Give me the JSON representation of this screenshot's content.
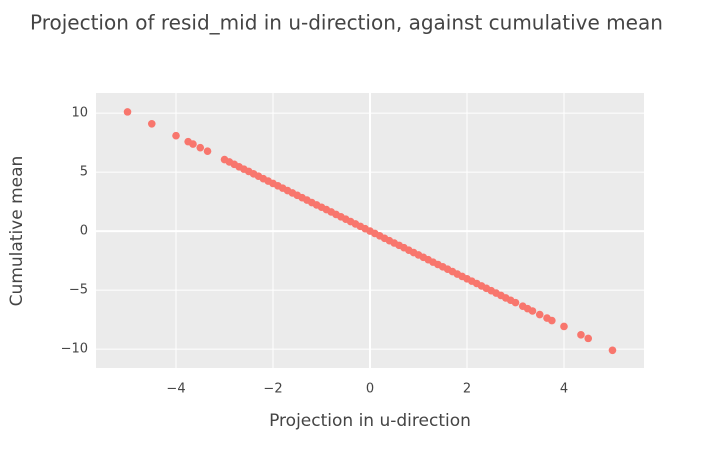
{
  "chart_data": {
    "type": "scatter",
    "title": "Projection of resid_mid in u-direction, against cumulative mean",
    "x_label": "Projection in u-direction",
    "y_label": "Cumulative mean",
    "grid": true,
    "xlim": [
      -5.65,
      5.65
    ],
    "ylim": [
      -11.6,
      11.7
    ],
    "xticks": [
      {
        "value": -4,
        "label": "−4"
      },
      {
        "value": -2,
        "label": "−2"
      },
      0,
      2,
      4
    ],
    "yticks": [
      {
        "value": -10,
        "label": "−10"
      },
      {
        "value": -5,
        "label": "−5"
      },
      0,
      5,
      10
    ],
    "series": [
      {
        "color": "#f8766d",
        "x": [
          -5.0,
          -4.5,
          -4.0,
          -3.75,
          -3.65,
          -3.5,
          -3.35,
          -3.0,
          -2.9,
          -2.8,
          -2.7,
          -2.6,
          -2.5,
          -2.4,
          -2.3,
          -2.2,
          -2.1,
          -2.0,
          -1.9,
          -1.8,
          -1.7,
          -1.6,
          -1.5,
          -1.4,
          -1.3,
          -1.2,
          -1.1,
          -1.0,
          -0.9,
          -0.8,
          -0.7,
          -0.6,
          -0.5,
          -0.4,
          -0.3,
          -0.2,
          -0.1,
          0,
          0.1,
          0.2,
          0.3,
          0.4,
          0.5,
          0.6,
          0.7,
          0.8,
          0.9,
          1.0,
          1.1,
          1.2,
          1.3,
          1.4,
          1.5,
          1.6,
          1.7,
          1.8,
          1.9,
          2.0,
          2.1,
          2.2,
          2.3,
          2.4,
          2.5,
          2.6,
          2.7,
          2.8,
          2.9,
          3.0,
          3.15,
          3.25,
          3.35,
          3.5,
          3.65,
          3.75,
          4.0,
          4.35,
          4.5,
          5.0
        ],
        "values": [
          10.1,
          9.09,
          8.08,
          7.58,
          7.37,
          7.07,
          6.77,
          6.06,
          5.86,
          5.66,
          5.45,
          5.25,
          5.05,
          4.85,
          4.65,
          4.44,
          4.24,
          4.04,
          3.84,
          3.64,
          3.43,
          3.23,
          3.03,
          2.83,
          2.63,
          2.42,
          2.22,
          2.02,
          1.82,
          1.62,
          1.41,
          1.21,
          1.01,
          0.81,
          0.61,
          0.4,
          0.2,
          0,
          -0.2,
          -0.4,
          -0.61,
          -0.81,
          -1.01,
          -1.21,
          -1.41,
          -1.62,
          -1.82,
          -2.02,
          -2.22,
          -2.42,
          -2.63,
          -2.83,
          -3.03,
          -3.23,
          -3.43,
          -3.64,
          -3.84,
          -4.04,
          -4.24,
          -4.44,
          -4.65,
          -4.85,
          -5.05,
          -5.25,
          -5.45,
          -5.66,
          -5.86,
          -6.06,
          -6.36,
          -6.57,
          -6.77,
          -7.07,
          -7.37,
          -7.58,
          -8.08,
          -8.79,
          -9.09,
          -10.1
        ]
      }
    ]
  }
}
